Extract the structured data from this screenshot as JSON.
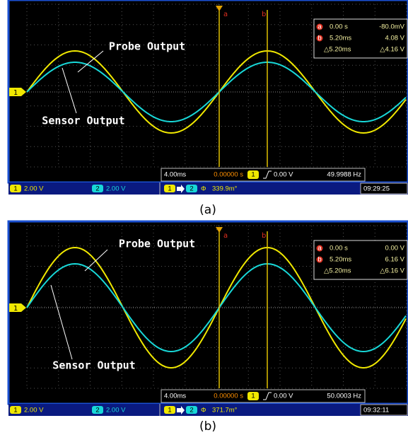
{
  "panels": [
    {
      "label": "(a)",
      "annotations": {
        "probe": "Probe Output",
        "sensor": "Sensor Output"
      },
      "cursor_a": {
        "marker": "a",
        "time": "0.00 s",
        "value": "-80.0mV"
      },
      "cursor_b": {
        "marker": "b",
        "time": "5.20ms",
        "value": "4.08 V"
      },
      "delta": {
        "time": "△5.20ms",
        "value": "△4.16 V"
      },
      "info": {
        "timebase": "4.00ms",
        "delay": "0.00000 s",
        "trigger_source": "1",
        "trigger_level": "0.00 V",
        "frequency": "49.9988 Hz"
      },
      "channels": [
        {
          "id": "1",
          "scale": "2.00 V"
        },
        {
          "id": "2",
          "scale": "2.00 V"
        }
      ],
      "phase": {
        "symbol": "Φ",
        "value": "339.9m°"
      },
      "clock": "09:29:25"
    },
    {
      "label": "(b)",
      "annotations": {
        "probe": "Probe Output",
        "sensor": "Sensor Output"
      },
      "cursor_a": {
        "marker": "a",
        "time": "0.00 s",
        "value": "0.00 V"
      },
      "cursor_b": {
        "marker": "b",
        "time": "5.20ms",
        "value": "6.16 V"
      },
      "delta": {
        "time": "△5.20ms",
        "value": "△6.16 V"
      },
      "info": {
        "timebase": "4.00ms",
        "delay": "0.00000 s",
        "trigger_source": "1",
        "trigger_level": "0.00 V",
        "frequency": "50.0003 Hz"
      },
      "channels": [
        {
          "id": "1",
          "scale": "2.00 V"
        },
        {
          "id": "2",
          "scale": "2.00 V"
        }
      ],
      "phase": {
        "symbol": "Φ",
        "value": "371.7m°"
      },
      "clock": "09:32:11"
    }
  ]
}
